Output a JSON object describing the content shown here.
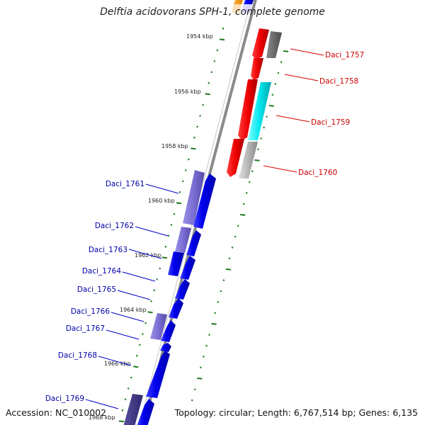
{
  "header": {
    "title": "Delftia acidovorans SPH-1, complete genome"
  },
  "footer": {
    "accession": "Accession: NC_010002",
    "topology": "Topology: circular; Length: 6,767,514 bp; Genes: 6,135"
  },
  "scale": {
    "ticks": [
      {
        "label": "1954 kbp"
      },
      {
        "label": "1956 kbp"
      },
      {
        "label": "1958 kbp"
      },
      {
        "label": "1960 kbp"
      },
      {
        "label": "1962 kbp"
      },
      {
        "label": "1964 kbp"
      },
      {
        "label": "1966 kbp"
      },
      {
        "label": "1968 kbp"
      }
    ]
  },
  "colors": {
    "forward_cds": "#0000ee",
    "forward_pseudo": "#7b6fd6",
    "reverse_cds": "#ee0000",
    "reverse_cyan": "#00e5ee",
    "reverse_grey": "#b5b5b5",
    "reverse_dark": "#707070",
    "backbone": "#8a8a8a",
    "tick": "#1f7a1f"
  },
  "genes": {
    "reverse": [
      {
        "label": "Daci_1757"
      },
      {
        "label": "Daci_1758"
      },
      {
        "label": "Daci_1759"
      },
      {
        "label": "Daci_1760"
      }
    ],
    "forward": [
      {
        "label": "Daci_1761"
      },
      {
        "label": "Daci_1762"
      },
      {
        "label": "Daci_1763"
      },
      {
        "label": "Daci_1764"
      },
      {
        "label": "Daci_1765"
      },
      {
        "label": "Daci_1766"
      },
      {
        "label": "Daci_1767"
      },
      {
        "label": "Daci_1768"
      },
      {
        "label": "Daci_1769"
      }
    ]
  }
}
